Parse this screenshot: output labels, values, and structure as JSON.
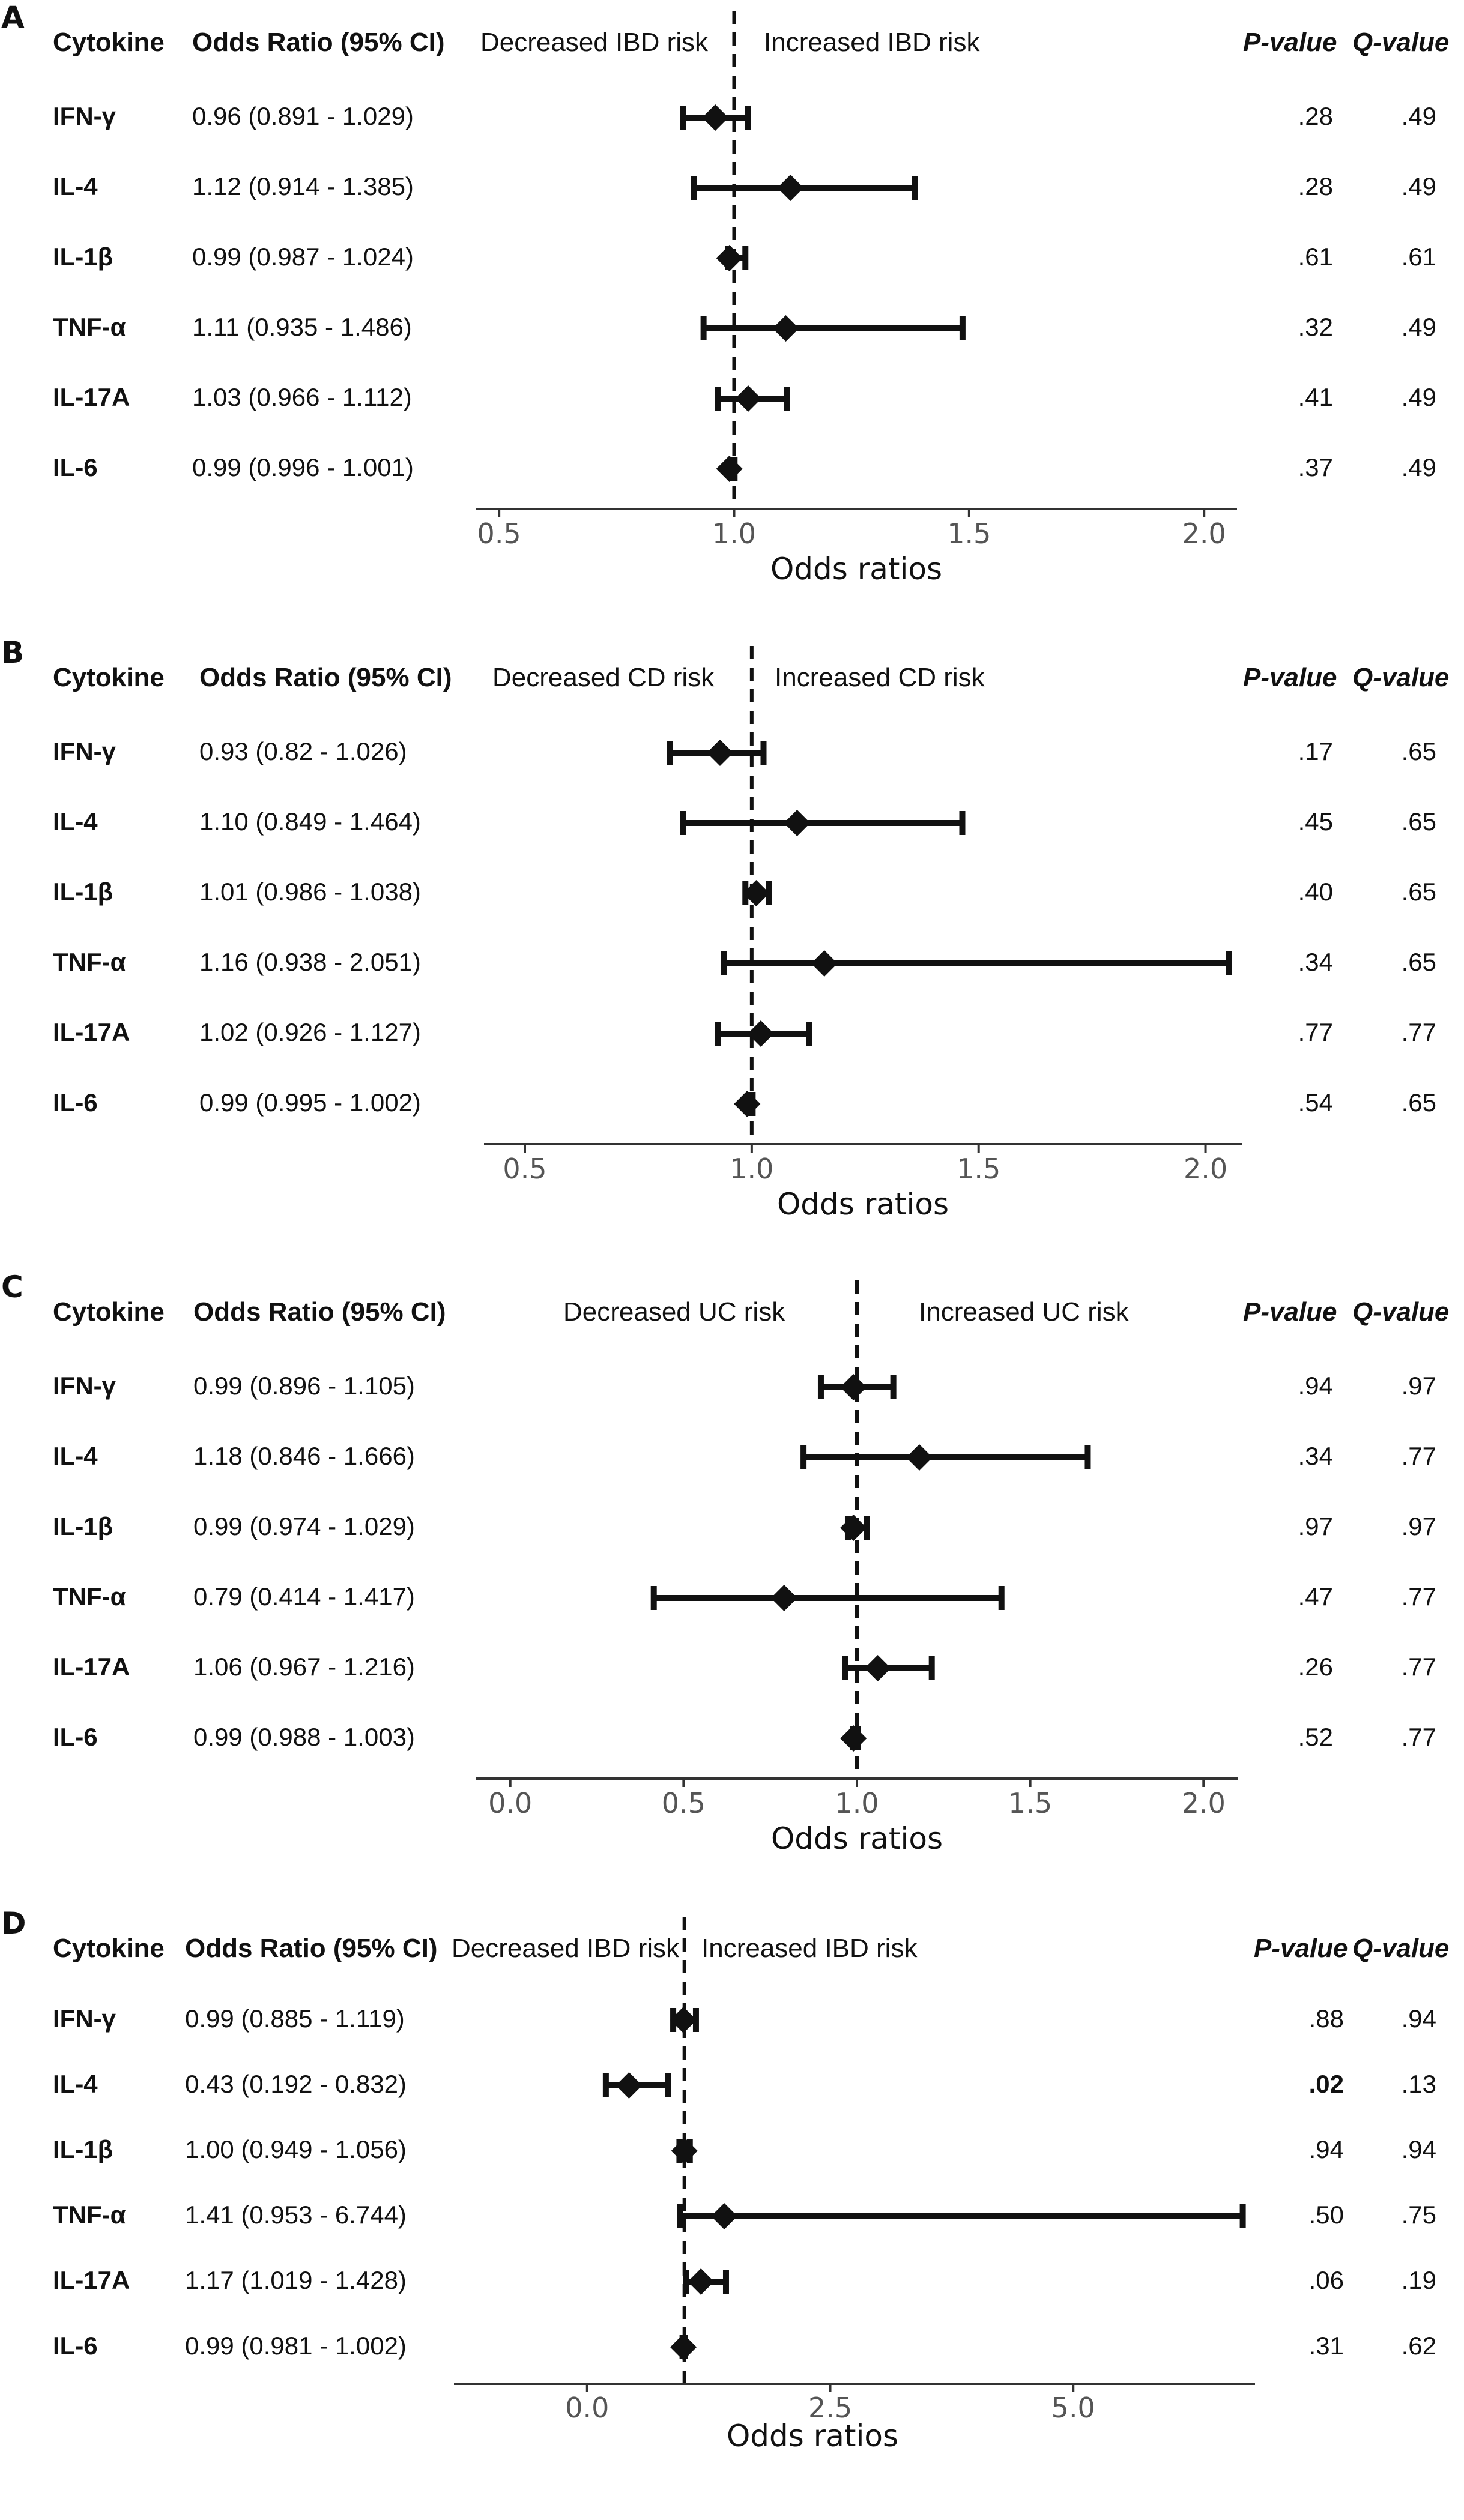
{
  "panels": [
    {
      "letter": "A",
      "headers": {
        "cytokine": "Cytokine",
        "or": "Odds Ratio (95% CI)",
        "p": "P-value",
        "q": "Q-value"
      },
      "dir_left": "Decreased IBD risk",
      "dir_right": "Increased IBD risk",
      "rows": [
        {
          "name": "IFN-γ",
          "or_text": "0.96 (0.891 - 1.029)",
          "or": 0.96,
          "lo": 0.891,
          "hi": 1.029,
          "p": ".28",
          "q": ".49",
          "p_bold": false
        },
        {
          "name": "IL-4",
          "or_text": "1.12 (0.914 - 1.385)",
          "or": 1.12,
          "lo": 0.914,
          "hi": 1.385,
          "p": ".28",
          "q": ".49",
          "p_bold": false
        },
        {
          "name": "IL-1β",
          "or_text": "0.99 (0.987 - 1.024)",
          "or": 0.99,
          "lo": 0.987,
          "hi": 1.024,
          "p": ".61",
          "q": ".61",
          "p_bold": false
        },
        {
          "name": "TNF-α",
          "or_text": "1.11 (0.935 - 1.486)",
          "or": 1.11,
          "lo": 0.935,
          "hi": 1.486,
          "p": ".32",
          "q": ".49",
          "p_bold": false
        },
        {
          "name": "IL-17A",
          "or_text": "1.03 (0.966 - 1.112)",
          "or": 1.03,
          "lo": 0.966,
          "hi": 1.112,
          "p": ".41",
          "q": ".49",
          "p_bold": false
        },
        {
          "name": "IL-6",
          "or_text": "0.99 (0.996 - 1.001)",
          "or": 0.99,
          "lo": 0.996,
          "hi": 1.001,
          "p": ".37",
          "q": ".49",
          "p_bold": false
        }
      ],
      "axis": {
        "ticks": [
          0.5,
          1.0,
          1.5,
          2.0
        ],
        "tick_labels": [
          "0.5",
          "1.0",
          "1.5",
          "2.0"
        ],
        "xmin": 0.45,
        "xmax": 2.07,
        "ref": 1.0,
        "title": "Odds ratios"
      }
    },
    {
      "letter": "B",
      "headers": {
        "cytokine": "Cytokine",
        "or": "Odds Ratio (95% CI)",
        "p": "P-value",
        "q": "Q-value"
      },
      "dir_left": "Decreased CD risk",
      "dir_right": "Increased CD risk",
      "rows": [
        {
          "name": "IFN-γ",
          "or_text": "0.93 (0.82 - 1.026)",
          "or": 0.93,
          "lo": 0.82,
          "hi": 1.026,
          "p": ".17",
          "q": ".65",
          "p_bold": false
        },
        {
          "name": "IL-4",
          "or_text": "1.10 (0.849 - 1.464)",
          "or": 1.1,
          "lo": 0.849,
          "hi": 1.464,
          "p": ".45",
          "q": ".65",
          "p_bold": false
        },
        {
          "name": "IL-1β",
          "or_text": "1.01 (0.986 - 1.038)",
          "or": 1.01,
          "lo": 0.986,
          "hi": 1.038,
          "p": ".40",
          "q": ".65",
          "p_bold": false
        },
        {
          "name": "TNF-α",
          "or_text": "1.16 (0.938 - 2.051)",
          "or": 1.16,
          "lo": 0.938,
          "hi": 2.051,
          "p": ".34",
          "q": ".65",
          "p_bold": false
        },
        {
          "name": "IL-17A",
          "or_text": "1.02 (0.926 - 1.127)",
          "or": 1.02,
          "lo": 0.926,
          "hi": 1.127,
          "p": ".77",
          "q": ".77",
          "p_bold": false
        },
        {
          "name": "IL-6",
          "or_text": "0.99 (0.995 - 1.002)",
          "or": 0.99,
          "lo": 0.995,
          "hi": 1.002,
          "p": ".54",
          "q": ".65",
          "p_bold": false
        }
      ],
      "axis": {
        "ticks": [
          0.5,
          1.0,
          1.5,
          2.0
        ],
        "tick_labels": [
          "0.5",
          "1.0",
          "1.5",
          "2.0"
        ],
        "xmin": 0.41,
        "xmax": 2.08,
        "ref": 1.0,
        "title": "Odds ratios"
      }
    },
    {
      "letter": "C",
      "headers": {
        "cytokine": "Cytokine",
        "or": "Odds Ratio (95% CI)",
        "p": "P-value",
        "q": "Q-value"
      },
      "dir_left": "Decreased UC risk",
      "dir_right": "Increased UC risk",
      "rows": [
        {
          "name": "IFN-γ",
          "or_text": "0.99 (0.896 - 1.105)",
          "or": 0.99,
          "lo": 0.896,
          "hi": 1.105,
          "p": ".94",
          "q": ".97",
          "p_bold": false
        },
        {
          "name": "IL-4",
          "or_text": "1.18 (0.846 - 1.666)",
          "or": 1.18,
          "lo": 0.846,
          "hi": 1.666,
          "p": ".34",
          "q": ".77",
          "p_bold": false
        },
        {
          "name": "IL-1β",
          "or_text": "0.99 (0.974 - 1.029)",
          "or": 0.99,
          "lo": 0.974,
          "hi": 1.029,
          "p": ".97",
          "q": ".97",
          "p_bold": false
        },
        {
          "name": "TNF-α",
          "or_text": "0.79 (0.414 - 1.417)",
          "or": 0.79,
          "lo": 0.414,
          "hi": 1.417,
          "p": ".47",
          "q": ".77",
          "p_bold": false
        },
        {
          "name": "IL-17A",
          "or_text": "1.06 (0.967 - 1.216)",
          "or": 1.06,
          "lo": 0.967,
          "hi": 1.216,
          "p": ".26",
          "q": ".77",
          "p_bold": false
        },
        {
          "name": "IL-6",
          "or_text": "0.99 (0.988 - 1.003)",
          "or": 0.99,
          "lo": 0.988,
          "hi": 1.003,
          "p": ".52",
          "q": ".77",
          "p_bold": false
        }
      ],
      "axis": {
        "ticks": [
          0.0,
          0.5,
          1.0,
          1.5,
          2.0
        ],
        "tick_labels": [
          "0.0",
          "0.5",
          "1.0",
          "1.5",
          "2.0"
        ],
        "xmin": -0.1,
        "xmax": 2.1,
        "ref": 1.0,
        "title": "Odds ratios"
      }
    },
    {
      "letter": "D",
      "headers": {
        "cytokine": "Cytokine",
        "or": "Odds Ratio (95% CI)",
        "p": "P-value",
        "q": "Q-value"
      },
      "dir_left": "Decreased IBD risk",
      "dir_right": "Increased IBD risk",
      "rows": [
        {
          "name": "IFN-γ",
          "or_text": "0.99 (0.885 - 1.119)",
          "or": 0.99,
          "lo": 0.885,
          "hi": 1.119,
          "p": ".88",
          "q": ".94",
          "p_bold": false
        },
        {
          "name": "IL-4",
          "or_text": "0.43 (0.192 - 0.832)",
          "or": 0.43,
          "lo": 0.192,
          "hi": 0.832,
          "p": ".02",
          "q": ".13",
          "p_bold": true
        },
        {
          "name": "IL-1β",
          "or_text": "1.00 (0.949 - 1.056)",
          "or": 1.0,
          "lo": 0.949,
          "hi": 1.056,
          "p": ".94",
          "q": ".94",
          "p_bold": false
        },
        {
          "name": "TNF-α",
          "or_text": "1.41 (0.953 - 6.744)",
          "or": 1.41,
          "lo": 0.953,
          "hi": 6.744,
          "p": ".50",
          "q": ".75",
          "p_bold": false
        },
        {
          "name": "IL-17A",
          "or_text": "1.17 (1.019 - 1.428)",
          "or": 1.17,
          "lo": 1.019,
          "hi": 1.428,
          "p": ".06",
          "q": ".19",
          "p_bold": false
        },
        {
          "name": "IL-6",
          "or_text": "0.99 (0.981 - 1.002)",
          "or": 0.99,
          "lo": 0.981,
          "hi": 1.002,
          "p": ".31",
          "q": ".62",
          "p_bold": false
        }
      ],
      "axis": {
        "ticks": [
          0.0,
          2.5,
          5.0
        ],
        "tick_labels": [
          "0.0",
          "2.5",
          "5.0"
        ],
        "xmin": -1.37,
        "xmax": 6.87,
        "ref": 1.0,
        "title": "Odds ratios"
      }
    }
  ],
  "chart_data": [
    {
      "type": "forest",
      "panel": "A",
      "xlabel": "Odds ratios",
      "xlim": [
        0.45,
        2.07
      ],
      "ref_line": 1.0,
      "categories": [
        "IFN-γ",
        "IL-4",
        "IL-1β",
        "TNF-α",
        "IL-17A",
        "IL-6"
      ],
      "values": [
        0.96,
        1.12,
        0.99,
        1.11,
        1.03,
        0.99
      ],
      "ci_low": [
        0.891,
        0.914,
        0.987,
        0.935,
        0.966,
        0.996
      ],
      "ci_high": [
        1.029,
        1.385,
        1.024,
        1.486,
        1.112,
        1.001
      ]
    },
    {
      "type": "forest",
      "panel": "B",
      "xlabel": "Odds ratios",
      "xlim": [
        0.41,
        2.08
      ],
      "ref_line": 1.0,
      "categories": [
        "IFN-γ",
        "IL-4",
        "IL-1β",
        "TNF-α",
        "IL-17A",
        "IL-6"
      ],
      "values": [
        0.93,
        1.1,
        1.01,
        1.16,
        1.02,
        0.99
      ],
      "ci_low": [
        0.82,
        0.849,
        0.986,
        0.938,
        0.926,
        0.995
      ],
      "ci_high": [
        1.026,
        1.464,
        1.038,
        2.051,
        1.127,
        1.002
      ]
    },
    {
      "type": "forest",
      "panel": "C",
      "xlabel": "Odds ratios",
      "xlim": [
        -0.1,
        2.1
      ],
      "ref_line": 1.0,
      "categories": [
        "IFN-γ",
        "IL-4",
        "IL-1β",
        "TNF-α",
        "IL-17A",
        "IL-6"
      ],
      "values": [
        0.99,
        1.18,
        0.99,
        0.79,
        1.06,
        0.99
      ],
      "ci_low": [
        0.896,
        0.846,
        0.974,
        0.414,
        0.967,
        0.988
      ],
      "ci_high": [
        1.105,
        1.666,
        1.029,
        1.417,
        1.216,
        1.003
      ]
    },
    {
      "type": "forest",
      "panel": "D",
      "xlabel": "Odds ratios",
      "xlim": [
        -1.37,
        6.87
      ],
      "ref_line": 1.0,
      "categories": [
        "IFN-γ",
        "IL-4",
        "IL-1β",
        "TNF-α",
        "IL-17A",
        "IL-6"
      ],
      "values": [
        0.99,
        0.43,
        1.0,
        1.41,
        1.17,
        0.99
      ],
      "ci_low": [
        0.885,
        0.192,
        0.949,
        0.953,
        1.019,
        0.981
      ],
      "ci_high": [
        1.119,
        0.832,
        1.056,
        6.744,
        1.428,
        1.002
      ]
    }
  ]
}
